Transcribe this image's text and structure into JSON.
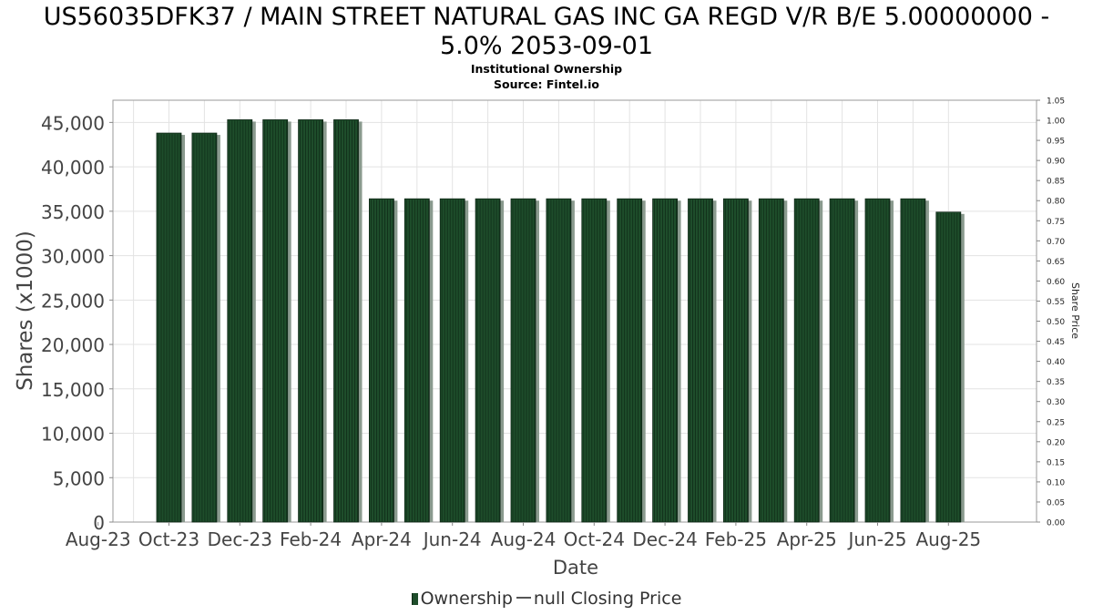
{
  "title_line1": "US56035DFK37 / MAIN STREET NATURAL GAS INC GA REGD V/R B/E 5.00000000 -",
  "title_line2": "5.0% 2053-09-01",
  "subtitle_line1": "Institutional Ownership",
  "subtitle_line2": "Source: Fintel.io",
  "legend": {
    "ownership_label": "Ownership",
    "price_label": "null Closing Price"
  },
  "colors": {
    "bar": "#1e4d2b",
    "bar_stripe": "#0f2d18",
    "bar_shadow": "#8a9a8e",
    "grid": "#e3e3e3"
  },
  "chart_data": {
    "type": "bar",
    "title": "US56035DFK37 / MAIN STREET NATURAL GAS INC GA REGD V/R B/E 5.00000000 - 5.0% 2053-09-01",
    "xlabel": "Date",
    "ylabel": "Shares (x1000)",
    "y2label": "Share Price",
    "ylim": [
      0,
      47500
    ],
    "y2lim": [
      0,
      1.05
    ],
    "yticks": [
      0,
      5000,
      10000,
      15000,
      20000,
      25000,
      30000,
      35000,
      40000,
      45000
    ],
    "ytick_labels": [
      "0",
      "5,000",
      "10,000",
      "15,000",
      "20,000",
      "25,000",
      "30,000",
      "35,000",
      "40,000",
      "45,000"
    ],
    "y2ticks": [
      "0.00",
      "0.05",
      "0.10",
      "0.15",
      "0.20",
      "0.25",
      "0.30",
      "0.35",
      "0.40",
      "0.45",
      "0.50",
      "0.55",
      "0.60",
      "0.65",
      "0.70",
      "0.75",
      "0.80",
      "0.85",
      "0.90",
      "0.95",
      "1.00",
      "1.05"
    ],
    "xtick_labels": [
      "Aug-23",
      "Oct-23",
      "Dec-23",
      "Feb-24",
      "Apr-24",
      "Jun-24",
      "Aug-24",
      "Oct-24",
      "Dec-24",
      "Feb-25",
      "Apr-25",
      "Jun-25",
      "Aug-25"
    ],
    "grid": true,
    "legend_position": "bottom",
    "series": [
      {
        "name": "Ownership",
        "values": [
          43800,
          43800,
          45300,
          45300,
          45300,
          45300,
          36400,
          36400,
          36400,
          36400,
          36400,
          36400,
          36400,
          36400,
          36400,
          36400,
          36400,
          36400,
          36400,
          36400,
          36400,
          36400,
          34900
        ]
      }
    ]
  }
}
